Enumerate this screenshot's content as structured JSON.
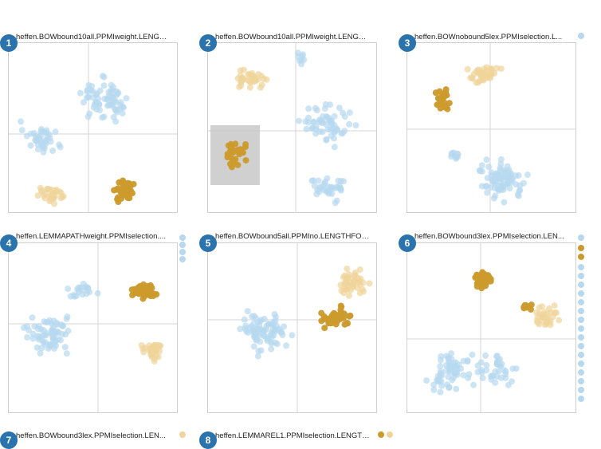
{
  "colors": {
    "gold": "#cc9a2c",
    "light_gold": "#f0d49a",
    "light_blue": "#b6d8f0",
    "badge": "#2a73ad",
    "brush": "#c8c8c8"
  },
  "panels": [
    {
      "number": "1",
      "title": "heffen.BOWbound10all.PPMIweight.LENGTH..."
    },
    {
      "number": "2",
      "title": "heffen.BOWbound10all.PPMIweight.LENGTH..."
    },
    {
      "number": "3",
      "title": "heffen.BOWnobound5lex.PPMIselection.L..."
    },
    {
      "number": "4",
      "title": "heffen.LEMMAPATHweight.PPMIselection...."
    },
    {
      "number": "5",
      "title": "heffen.BOWbound5all.PPMIno.LENGTHFOC..."
    },
    {
      "number": "6",
      "title": "heffen.BOWbound3lex.PPMIselection.LEN..."
    },
    {
      "number": "7",
      "title": "heffen.BOWbound3lex.PPMIselection.LEN..."
    },
    {
      "number": "8",
      "title": "heffen.LEMMAREL1.PPMIselection.LENGTH..."
    }
  ],
  "chart_data": [
    {
      "type": "scatter",
      "panel": "1",
      "grid": "crosshair"
    },
    {
      "type": "scatter",
      "panel": "2",
      "grid": "crosshair",
      "brush_selection": true
    },
    {
      "type": "scatter",
      "panel": "3",
      "grid": "crosshair"
    },
    {
      "type": "scatter",
      "panel": "4",
      "grid": "crosshair"
    },
    {
      "type": "scatter",
      "panel": "5",
      "grid": "crosshair"
    },
    {
      "type": "scatter",
      "panel": "6",
      "grid": "crosshair"
    },
    {
      "type": "scatter",
      "panel": "7",
      "grid": "crosshair"
    },
    {
      "type": "scatter",
      "panel": "8",
      "grid": "crosshair"
    }
  ]
}
